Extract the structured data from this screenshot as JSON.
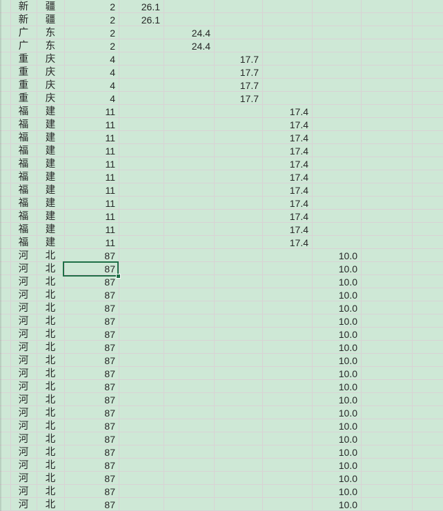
{
  "theme": {
    "background": "#cee8d6",
    "gridline": "#d9d2d5",
    "text": "#262626",
    "selection_border": "#1e6e46",
    "fill_handle": "#1e6e46"
  },
  "selection": {
    "row_index": 20,
    "column": "count"
  },
  "value_columns": [
    "26.1",
    "24.4",
    "17.7",
    "17.4",
    "10.0"
  ],
  "rows": [
    {
      "p1": "新",
      "p2": "疆",
      "count": "2",
      "value": "26.1",
      "vcol": 0
    },
    {
      "p1": "新",
      "p2": "疆",
      "count": "2",
      "value": "26.1",
      "vcol": 0
    },
    {
      "p1": "广",
      "p2": "东",
      "count": "2",
      "value": "24.4",
      "vcol": 1
    },
    {
      "p1": "广",
      "p2": "东",
      "count": "2",
      "value": "24.4",
      "vcol": 1
    },
    {
      "p1": "重",
      "p2": "庆",
      "count": "4",
      "value": "17.7",
      "vcol": 2
    },
    {
      "p1": "重",
      "p2": "庆",
      "count": "4",
      "value": "17.7",
      "vcol": 2
    },
    {
      "p1": "重",
      "p2": "庆",
      "count": "4",
      "value": "17.7",
      "vcol": 2
    },
    {
      "p1": "重",
      "p2": "庆",
      "count": "4",
      "value": "17.7",
      "vcol": 2
    },
    {
      "p1": "福",
      "p2": "建",
      "count": "11",
      "value": "17.4",
      "vcol": 3
    },
    {
      "p1": "福",
      "p2": "建",
      "count": "11",
      "value": "17.4",
      "vcol": 3
    },
    {
      "p1": "福",
      "p2": "建",
      "count": "11",
      "value": "17.4",
      "vcol": 3
    },
    {
      "p1": "福",
      "p2": "建",
      "count": "11",
      "value": "17.4",
      "vcol": 3
    },
    {
      "p1": "福",
      "p2": "建",
      "count": "11",
      "value": "17.4",
      "vcol": 3
    },
    {
      "p1": "福",
      "p2": "建",
      "count": "11",
      "value": "17.4",
      "vcol": 3
    },
    {
      "p1": "福",
      "p2": "建",
      "count": "11",
      "value": "17.4",
      "vcol": 3
    },
    {
      "p1": "福",
      "p2": "建",
      "count": "11",
      "value": "17.4",
      "vcol": 3
    },
    {
      "p1": "福",
      "p2": "建",
      "count": "11",
      "value": "17.4",
      "vcol": 3
    },
    {
      "p1": "福",
      "p2": "建",
      "count": "11",
      "value": "17.4",
      "vcol": 3
    },
    {
      "p1": "福",
      "p2": "建",
      "count": "11",
      "value": "17.4",
      "vcol": 3
    },
    {
      "p1": "河",
      "p2": "北",
      "count": "87",
      "value": "10.0",
      "vcol": 4
    },
    {
      "p1": "河",
      "p2": "北",
      "count": "87",
      "value": "10.0",
      "vcol": 4
    },
    {
      "p1": "河",
      "p2": "北",
      "count": "87",
      "value": "10.0",
      "vcol": 4
    },
    {
      "p1": "河",
      "p2": "北",
      "count": "87",
      "value": "10.0",
      "vcol": 4
    },
    {
      "p1": "河",
      "p2": "北",
      "count": "87",
      "value": "10.0",
      "vcol": 4
    },
    {
      "p1": "河",
      "p2": "北",
      "count": "87",
      "value": "10.0",
      "vcol": 4
    },
    {
      "p1": "河",
      "p2": "北",
      "count": "87",
      "value": "10.0",
      "vcol": 4
    },
    {
      "p1": "河",
      "p2": "北",
      "count": "87",
      "value": "10.0",
      "vcol": 4
    },
    {
      "p1": "河",
      "p2": "北",
      "count": "87",
      "value": "10.0",
      "vcol": 4
    },
    {
      "p1": "河",
      "p2": "北",
      "count": "87",
      "value": "10.0",
      "vcol": 4
    },
    {
      "p1": "河",
      "p2": "北",
      "count": "87",
      "value": "10.0",
      "vcol": 4
    },
    {
      "p1": "河",
      "p2": "北",
      "count": "87",
      "value": "10.0",
      "vcol": 4
    },
    {
      "p1": "河",
      "p2": "北",
      "count": "87",
      "value": "10.0",
      "vcol": 4
    },
    {
      "p1": "河",
      "p2": "北",
      "count": "87",
      "value": "10.0",
      "vcol": 4
    },
    {
      "p1": "河",
      "p2": "北",
      "count": "87",
      "value": "10.0",
      "vcol": 4
    },
    {
      "p1": "河",
      "p2": "北",
      "count": "87",
      "value": "10.0",
      "vcol": 4
    },
    {
      "p1": "河",
      "p2": "北",
      "count": "87",
      "value": "10.0",
      "vcol": 4
    },
    {
      "p1": "河",
      "p2": "北",
      "count": "87",
      "value": "10.0",
      "vcol": 4
    },
    {
      "p1": "河",
      "p2": "北",
      "count": "87",
      "value": "10.0",
      "vcol": 4
    },
    {
      "p1": "河",
      "p2": "北",
      "count": "87",
      "value": "10.0",
      "vcol": 4
    }
  ]
}
